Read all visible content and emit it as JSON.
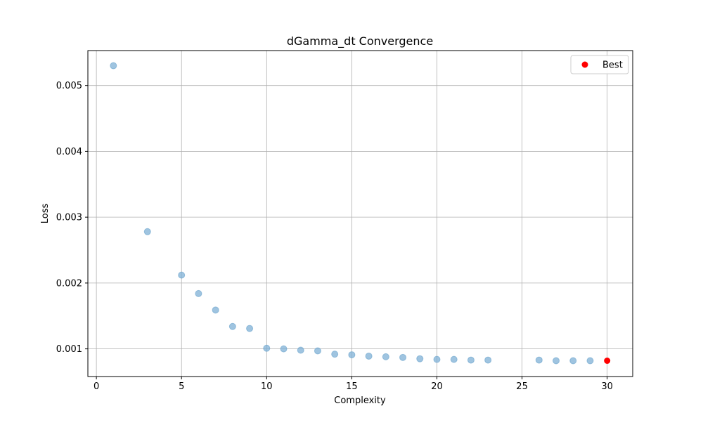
{
  "chart_data": {
    "type": "scatter",
    "title": "dGamma_dt Convergence",
    "xlabel": "Complexity",
    "ylabel": "Loss",
    "xlim": [
      -0.5,
      31.5
    ],
    "ylim": [
      0.00058,
      0.00553
    ],
    "xticks": [
      0,
      5,
      10,
      15,
      20,
      25,
      30
    ],
    "xtick_labels": [
      "0",
      "5",
      "10",
      "15",
      "20",
      "25",
      "30"
    ],
    "yticks": [
      0.001,
      0.002,
      0.003,
      0.004,
      0.005
    ],
    "ytick_labels": [
      "0.001",
      "0.002",
      "0.003",
      "0.004",
      "0.005"
    ],
    "grid": true,
    "legend_position": "top-right",
    "series": [
      {
        "color": "#7fb0d6",
        "alpha": 0.6,
        "x": [
          1,
          3,
          5,
          6,
          7,
          8,
          9,
          10,
          11,
          12,
          13,
          14,
          15,
          16,
          17,
          18,
          19,
          20,
          21,
          22,
          23,
          26,
          27,
          28,
          29
        ],
        "y": [
          0.0053,
          0.00278,
          0.00212,
          0.00184,
          0.00159,
          0.00134,
          0.00131,
          0.00101,
          0.001,
          0.00098,
          0.00097,
          0.00092,
          0.00091,
          0.00089,
          0.00088,
          0.00087,
          0.00085,
          0.00084,
          0.00084,
          0.00083,
          0.00083,
          0.00083,
          0.00082,
          0.00082,
          0.00082
        ]
      },
      {
        "name": "Best",
        "color": "#ff0000",
        "alpha": 1.0,
        "x": [
          30
        ],
        "y": [
          0.00082
        ]
      }
    ]
  }
}
